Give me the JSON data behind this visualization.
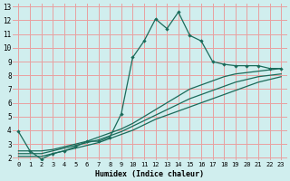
{
  "title": "",
  "xlabel": "Humidex (Indice chaleur)",
  "bg_color": "#d0eeee",
  "grid_color": "#e8a0a0",
  "line_color": "#1a6b5a",
  "xlim": [
    -0.5,
    23.5
  ],
  "ylim": [
    1.8,
    13.2
  ],
  "xticks": [
    0,
    1,
    2,
    3,
    4,
    5,
    6,
    7,
    8,
    9,
    10,
    11,
    12,
    13,
    14,
    15,
    16,
    17,
    18,
    19,
    20,
    21,
    22,
    23
  ],
  "yticks": [
    2,
    3,
    4,
    5,
    6,
    7,
    8,
    9,
    10,
    11,
    12,
    13
  ],
  "line1_y": [
    3.9,
    2.5,
    1.9,
    2.3,
    2.5,
    2.8,
    3.2,
    3.2,
    3.5,
    5.2,
    9.3,
    10.5,
    12.1,
    11.4,
    12.6,
    10.9,
    10.5,
    9.0,
    8.8,
    8.7,
    8.7,
    8.7,
    8.5,
    8.5
  ],
  "fan_lines": [
    [
      2.5,
      2.5,
      2.5,
      2.6,
      2.8,
      3.0,
      3.2,
      3.5,
      3.8,
      4.1,
      4.5,
      5.0,
      5.5,
      6.0,
      6.5,
      7.0,
      7.3,
      7.6,
      7.9,
      8.1,
      8.2,
      8.3,
      8.4,
      8.5
    ],
    [
      2.3,
      2.3,
      2.3,
      2.5,
      2.7,
      2.9,
      3.1,
      3.3,
      3.6,
      3.9,
      4.3,
      4.7,
      5.1,
      5.5,
      5.9,
      6.3,
      6.6,
      6.9,
      7.2,
      7.5,
      7.7,
      7.9,
      8.0,
      8.1
    ],
    [
      2.1,
      2.1,
      2.1,
      2.3,
      2.5,
      2.7,
      2.9,
      3.1,
      3.4,
      3.7,
      4.0,
      4.4,
      4.8,
      5.1,
      5.4,
      5.7,
      6.0,
      6.3,
      6.6,
      6.9,
      7.2,
      7.5,
      7.7,
      7.9
    ]
  ]
}
